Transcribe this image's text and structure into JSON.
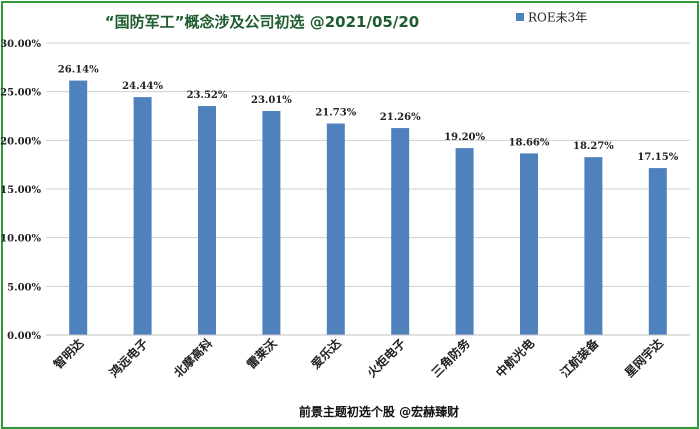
{
  "chart_data": {
    "type": "bar",
    "title": "“国防军工”概念涉及公司初选 @2021/05/20",
    "categories": [
      "智明达",
      "鸿远电子",
      "北摩高科",
      "雷莱沃",
      "爱乐达",
      "火炬电子",
      "三角防务",
      "中航光电",
      "江航装备",
      "星网宇达"
    ],
    "series": [
      {
        "name": "ROE未3年",
        "values": [
          26.14,
          24.44,
          23.52,
          23.01,
          21.73,
          21.26,
          19.2,
          18.66,
          18.27,
          17.15
        ],
        "labels": [
          "26.14%",
          "24.44%",
          "23.52%",
          "23.01%",
          "21.73%",
          "21.26%",
          "19.20%",
          "18.66%",
          "18.27%",
          "17.15%"
        ]
      }
    ],
    "ylim": [
      0,
      30
    ],
    "yticks": [
      0,
      5,
      10,
      15,
      20,
      25,
      30
    ],
    "ytick_labels": [
      "0.00%",
      "5.00%",
      "10.00%",
      "15.00%",
      "20.00%",
      "25.00%",
      "30.00%"
    ],
    "grid": "horizontal",
    "legend_position": "top-right",
    "footer": "前景主题初选个股 @宏赫臻财",
    "colors": {
      "bar": "#4f81bd",
      "title": "#1f5c2f",
      "grid": "#d0d0d0",
      "frame": "#2e9a3a"
    }
  }
}
